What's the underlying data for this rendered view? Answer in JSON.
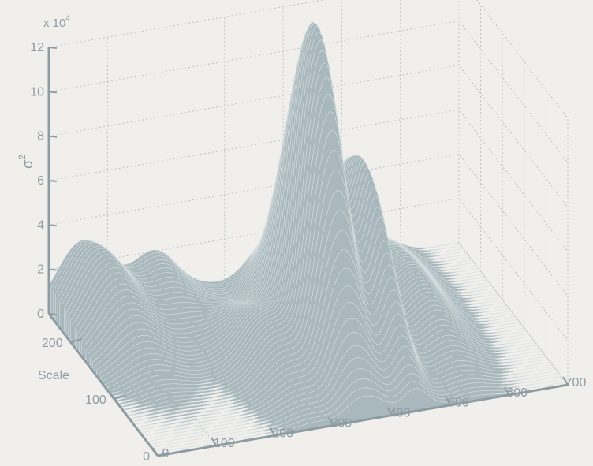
{
  "chart_data": {
    "type": "surface",
    "title": "",
    "zlabel": "σ",
    "zlabel_superscript": "2",
    "ylabel": "Scale",
    "xlabel": "",
    "zscale_label": "x 10",
    "zscale_exponent": "4",
    "x_ticks": [
      "0",
      "100",
      "200",
      "300",
      "400",
      "500",
      "600",
      "700"
    ],
    "y_ticks": [
      "0",
      "100",
      "200"
    ],
    "z_ticks": [
      "0",
      "2",
      "4",
      "6",
      "8",
      "10",
      "12"
    ],
    "xlim": [
      0,
      700
    ],
    "ylim": [
      0,
      250
    ],
    "zlim": [
      0,
      120000
    ],
    "grid": true,
    "colors": {
      "surface": "#a9b8bd",
      "axis": "#8d9ca2",
      "grid": "#b7c3c7",
      "background": "#f1efeb"
    },
    "peaks": [
      {
        "x": 40,
        "y": 250,
        "z": 19000
      },
      {
        "x": 80,
        "y": 200,
        "z": 24000
      },
      {
        "x": 180,
        "y": 250,
        "z": 20000
      },
      {
        "x": 270,
        "y": 110,
        "z": 22000
      },
      {
        "x": 340,
        "y": 120,
        "z": 82000
      },
      {
        "x": 375,
        "y": 130,
        "z": 110000
      },
      {
        "x": 440,
        "y": 110,
        "z": 74000
      },
      {
        "x": 430,
        "y": 210,
        "z": 32000
      },
      {
        "x": 540,
        "y": 110,
        "z": 17000
      },
      {
        "x": 550,
        "y": 200,
        "z": 15000
      }
    ]
  }
}
